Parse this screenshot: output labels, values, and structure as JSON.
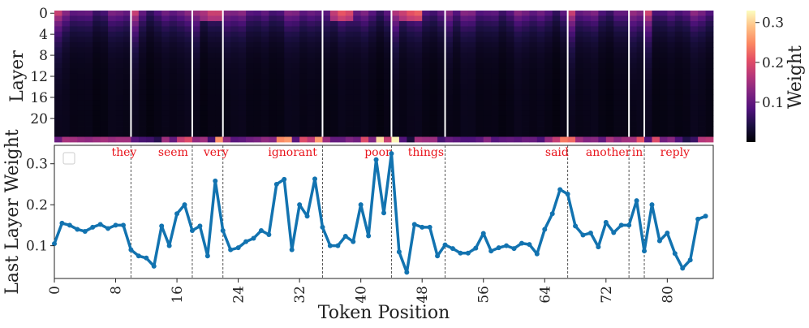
{
  "chart_data": [
    {
      "type": "heatmap",
      "ylabel": "Layer",
      "y_ticks": [
        "0",
        "4",
        "8",
        "12",
        "16",
        "20"
      ],
      "n_layers": 25,
      "n_tokens": 86,
      "colorbar": {
        "label": "Weight",
        "ticks": [
          "0.1",
          "0.2",
          "0.3"
        ],
        "tick_values": [
          0.1,
          0.2,
          0.3
        ],
        "range": [
          0.0,
          0.33
        ],
        "colormap": "magma"
      },
      "white_separators_at_token": [
        10,
        18,
        22,
        35,
        44,
        51,
        67,
        75,
        77
      ],
      "last_layer_row": [
        0.105,
        0.155,
        0.15,
        0.14,
        0.135,
        0.145,
        0.152,
        0.142,
        0.15,
        0.15,
        0.09,
        0.075,
        0.07,
        0.05,
        0.148,
        0.1,
        0.178,
        0.2,
        0.137,
        0.148,
        0.075,
        0.258,
        0.137,
        0.09,
        0.095,
        0.11,
        0.118,
        0.137,
        0.127,
        0.25,
        0.262,
        0.09,
        0.2,
        0.172,
        0.263,
        0.145,
        0.1,
        0.1,
        0.123,
        0.11,
        0.2,
        0.124,
        0.31,
        0.18,
        0.325,
        0.085,
        0.035,
        0.152,
        0.145,
        0.145,
        0.075,
        0.102,
        0.093,
        0.082,
        0.082,
        0.094,
        0.13,
        0.087,
        0.095,
        0.1,
        0.093,
        0.106,
        0.103,
        0.08,
        0.14,
        0.178,
        0.237,
        0.226,
        0.148,
        0.126,
        0.131,
        0.097,
        0.157,
        0.132,
        0.15,
        0.15,
        0.21,
        0.087,
        0.2,
        0.112,
        0.131,
        0.081,
        0.045,
        0.065,
        0.165,
        0.172
      ]
    },
    {
      "type": "line",
      "xlabel": "Token Position",
      "ylabel": "Last Layer Weight",
      "x_ticks": [
        0,
        8,
        16,
        24,
        32,
        40,
        48,
        56,
        64,
        72,
        80
      ],
      "y_ticks": [
        0.1,
        0.2,
        0.3
      ],
      "y_tick_labels": [
        "0.1",
        "0.2",
        "0.3"
      ],
      "xlim": [
        0,
        86
      ],
      "ylim": [
        0.02,
        0.345
      ],
      "series": [
        {
          "color": "#1f77b4",
          "values": [
            0.105,
            0.155,
            0.15,
            0.14,
            0.135,
            0.145,
            0.152,
            0.142,
            0.15,
            0.15,
            0.09,
            0.075,
            0.07,
            0.05,
            0.148,
            0.1,
            0.178,
            0.2,
            0.137,
            0.148,
            0.075,
            0.258,
            0.137,
            0.09,
            0.095,
            0.11,
            0.118,
            0.137,
            0.127,
            0.25,
            0.262,
            0.09,
            0.2,
            0.172,
            0.263,
            0.145,
            0.1,
            0.1,
            0.123,
            0.11,
            0.2,
            0.124,
            0.31,
            0.18,
            0.325,
            0.085,
            0.035,
            0.152,
            0.145,
            0.145,
            0.075,
            0.102,
            0.093,
            0.082,
            0.082,
            0.094,
            0.13,
            0.087,
            0.095,
            0.1,
            0.093,
            0.106,
            0.103,
            0.08,
            0.14,
            0.178,
            0.237,
            0.226,
            0.148,
            0.126,
            0.131,
            0.097,
            0.157,
            0.132,
            0.15,
            0.15,
            0.21,
            0.087,
            0.2,
            0.112,
            0.131,
            0.081,
            0.045,
            0.065,
            0.165,
            0.172
          ]
        }
      ],
      "vlines_at_token": [
        10,
        18,
        22,
        35,
        44,
        51,
        67,
        75,
        77
      ],
      "word_annotations": [
        {
          "text": "they",
          "x": 9.1
        },
        {
          "text": "seem",
          "x": 15.5
        },
        {
          "text": "very",
          "x": 21.1
        },
        {
          "text": "ignorant",
          "x": 31.1
        },
        {
          "text": "poor",
          "x": 42.2
        },
        {
          "text": "things",
          "x": 48.5
        },
        {
          "text": "said",
          "x": 65.6
        },
        {
          "text": "another",
          "x": 72.3
        },
        {
          "text": "in",
          "x": 76.1
        },
        {
          "text": "reply",
          "x": 81.0
        }
      ],
      "legend": "top-left (empty box)"
    }
  ]
}
